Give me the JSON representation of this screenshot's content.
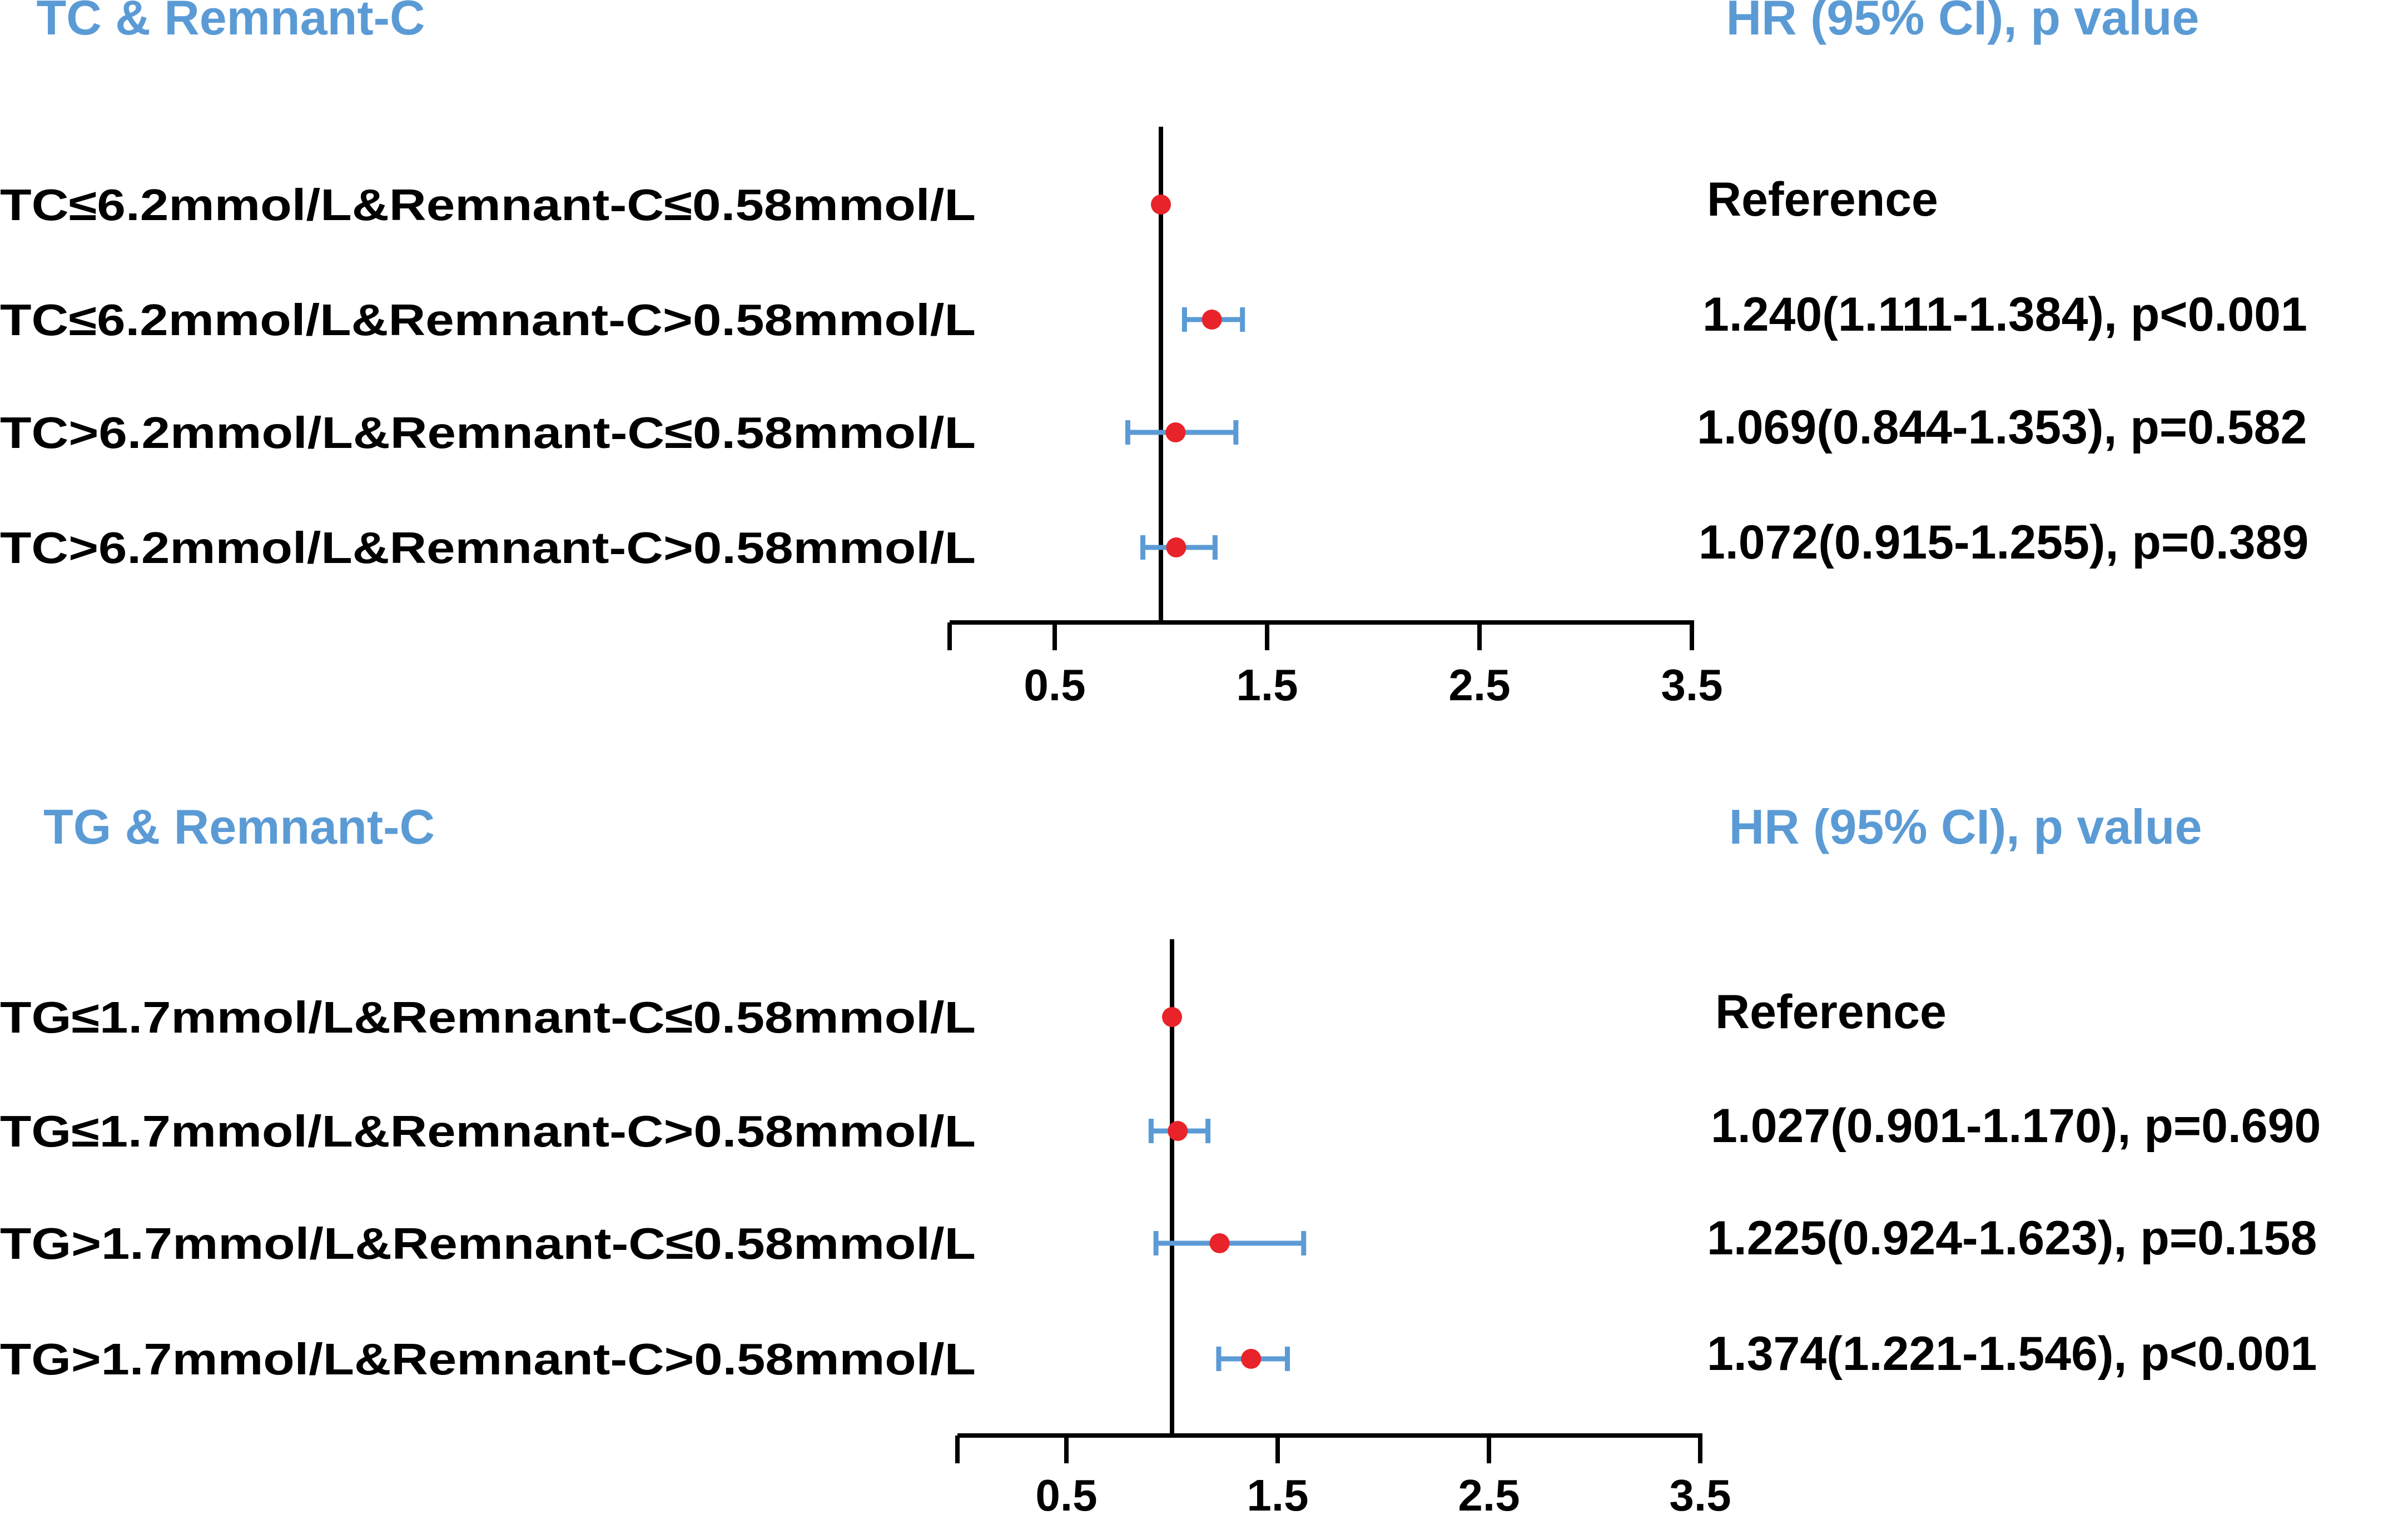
{
  "colors": {
    "header": "#5b9bd5",
    "ci": "#5b9bd5",
    "point": "#e8232a",
    "axis": "#000000",
    "text": "#000000"
  },
  "chart_data": [
    {
      "type": "forest",
      "title": "TC & Remnant-C",
      "stat_header": "HR (95% CI), p value",
      "xlim": [
        0,
        3.5
      ],
      "xticks": [
        "0.5",
        "1.5",
        "2.5",
        "3.5"
      ],
      "xtick_values": [
        0.5,
        1.5,
        2.5,
        3.5
      ],
      "reference_line": 1,
      "rows": [
        {
          "label": "TC≤6.2mmol/L&Remnant-C≤0.58mmol/L",
          "hr": 1.0,
          "lower": null,
          "upper": null,
          "text": "Reference"
        },
        {
          "label": "TC≤6.2mmol/L&Remnant-C>0.58mmol/L",
          "hr": 1.24,
          "lower": 1.111,
          "upper": 1.384,
          "text": "1.240(1.111-1.384), p<0.001"
        },
        {
          "label": "TC>6.2mmol/L&Remnant-C≤0.58mmol/L",
          "hr": 1.069,
          "lower": 0.844,
          "upper": 1.353,
          "text": "1.069(0.844-1.353), p=0.582"
        },
        {
          "label": "TC>6.2mmol/L&Remnant-C>0.58mmol/L",
          "hr": 1.072,
          "lower": 0.915,
          "upper": 1.255,
          "text": "1.072(0.915-1.255), p=0.389"
        }
      ]
    },
    {
      "type": "forest",
      "title": "TG & Remnant-C",
      "stat_header": "HR (95% CI), p value",
      "xlim": [
        0,
        3.5
      ],
      "xticks": [
        "0.5",
        "1.5",
        "2.5",
        "3.5"
      ],
      "xtick_values": [
        0.5,
        1.5,
        2.5,
        3.5
      ],
      "reference_line": 1,
      "rows": [
        {
          "label": "TG≤1.7mmol/L&Remnant-C≤0.58mmol/L",
          "hr": 1.0,
          "lower": null,
          "upper": null,
          "text": "Reference"
        },
        {
          "label": "TG≤1.7mmol/L&Remnant-C>0.58mmol/L",
          "hr": 1.027,
          "lower": 0.901,
          "upper": 1.17,
          "text": "1.027(0.901-1.170), p=0.690"
        },
        {
          "label": "TG>1.7mmol/L&Remnant-C≤0.58mmol/L",
          "hr": 1.225,
          "lower": 0.924,
          "upper": 1.623,
          "text": "1.225(0.924-1.623), p=0.158"
        },
        {
          "label": "TG>1.7mmol/L&Remnant-C>0.58mmol/L",
          "hr": 1.374,
          "lower": 1.221,
          "upper": 1.546,
          "text": "1.374(1.221-1.546), p<0.001"
        }
      ]
    }
  ]
}
